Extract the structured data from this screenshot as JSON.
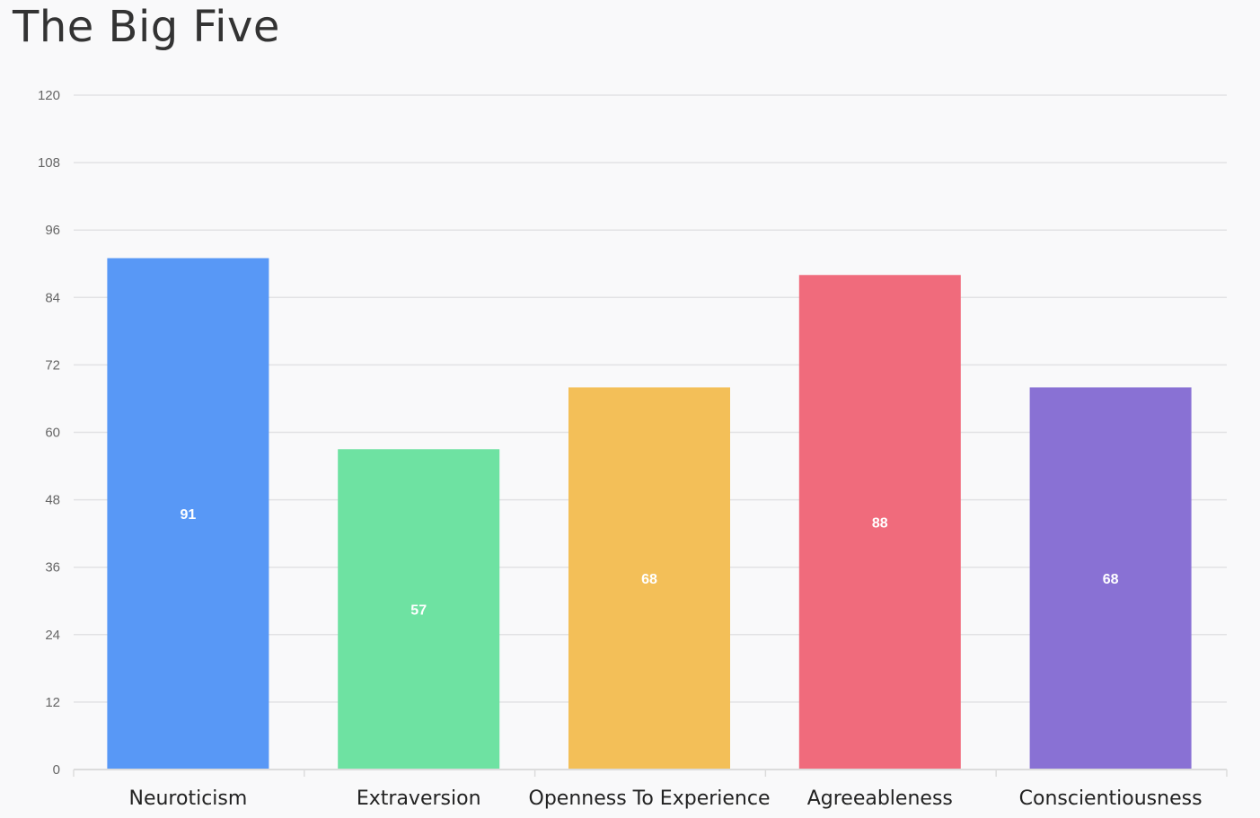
{
  "chart_data": {
    "type": "bar",
    "title": "The Big Five",
    "xlabel": "",
    "ylabel": "",
    "categories": [
      "Neuroticism",
      "Extraversion",
      "Openness To Experience",
      "Agreeableness",
      "Conscientiousness"
    ],
    "values": [
      91,
      57,
      68,
      88,
      68
    ],
    "colors": [
      "#5898f6",
      "#6ee2a2",
      "#f3bf58",
      "#f06b7c",
      "#8971d4"
    ],
    "ylim": [
      0,
      120
    ],
    "yticks": [
      0,
      12,
      24,
      36,
      48,
      60,
      72,
      84,
      96,
      108,
      120
    ],
    "grid": true,
    "legend": "none",
    "data_labels": true
  }
}
